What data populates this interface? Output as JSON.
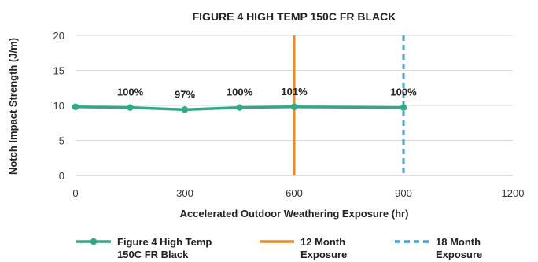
{
  "chart_data": {
    "type": "line",
    "title": "FIGURE 4 HIGH TEMP 150C FR BLACK",
    "xlabel": "Accelerated Outdoor Weathering Exposure (hr)",
    "ylabel": "Notch Impact Strength (J/m)",
    "xlim": [
      0,
      1200
    ],
    "ylim": [
      0,
      20
    ],
    "x_ticks": [
      "0",
      "300",
      "600",
      "900",
      "1200"
    ],
    "y_ticks": [
      "0",
      "5",
      "10",
      "15",
      "20"
    ],
    "grid": "horizontal",
    "legend_position": "bottom",
    "series": [
      {
        "name": "Figure 4 High Temp 150C FR Black",
        "legend_lines": [
          "Figure 4 High Temp",
          "150C FR Black"
        ],
        "color": "#2EAA8A",
        "style": "solid-with-markers",
        "x": [
          0,
          150,
          300,
          450,
          600,
          900
        ],
        "y": [
          9.8,
          9.7,
          9.4,
          9.7,
          9.8,
          9.7
        ],
        "point_labels": [
          null,
          "100%",
          "97%",
          "100%",
          "101%",
          "100%"
        ]
      }
    ],
    "reference_lines": [
      {
        "name": "12 Month Exposure",
        "legend_lines": [
          "12 Month",
          "Exposure"
        ],
        "x": 600,
        "color": "#F0882A",
        "style": "solid"
      },
      {
        "name": "18 Month Exposure",
        "legend_lines": [
          "18 Month",
          "Exposure"
        ],
        "x": 900,
        "color": "#3FA0D8",
        "style": "dashed"
      }
    ]
  }
}
